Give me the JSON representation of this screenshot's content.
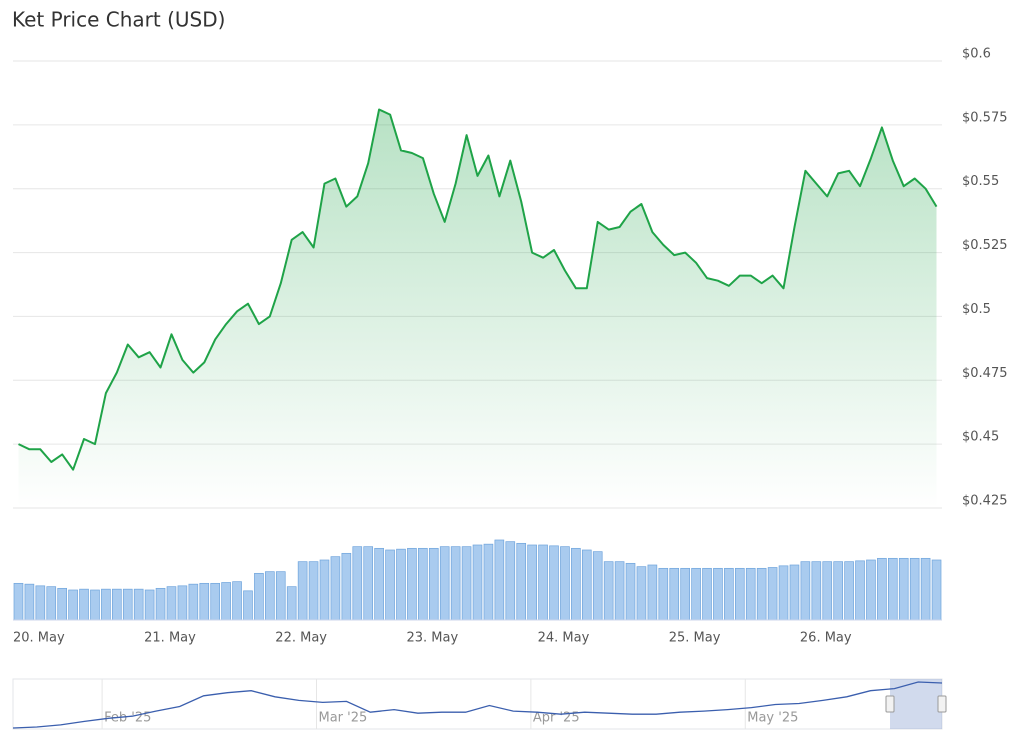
{
  "chart_data": {
    "type": "line",
    "title": "Ket Price Chart (USD)",
    "categories": [
      "20. May",
      null,
      null,
      null,
      null,
      null,
      null,
      null,
      null,
      null,
      null,
      null,
      "21. May",
      null,
      null,
      null,
      null,
      null,
      null,
      null,
      null,
      null,
      null,
      null,
      "22. May",
      null,
      null,
      null,
      null,
      null,
      null,
      null,
      null,
      null,
      null,
      null,
      "23. May",
      null,
      null,
      null,
      null,
      null,
      null,
      null,
      null,
      null,
      null,
      null,
      "24. May",
      null,
      null,
      null,
      null,
      null,
      null,
      null,
      null,
      null,
      null,
      null,
      "25. May",
      null,
      null,
      null,
      null,
      null,
      null,
      null,
      null,
      null,
      null,
      null,
      "26. May",
      null,
      null,
      null,
      null,
      null,
      null,
      null,
      null,
      null,
      null,
      null,
      null
    ],
    "values": [
      0.45,
      0.448,
      0.448,
      0.443,
      0.446,
      0.44,
      0.452,
      0.45,
      0.47,
      0.478,
      0.489,
      0.484,
      0.486,
      0.48,
      0.493,
      0.483,
      0.478,
      0.482,
      0.491,
      0.497,
      0.502,
      0.505,
      0.497,
      0.5,
      0.513,
      0.53,
      0.533,
      0.527,
      0.552,
      0.554,
      0.543,
      0.547,
      0.56,
      0.581,
      0.579,
      0.565,
      0.564,
      0.562,
      0.548,
      0.537,
      0.552,
      0.571,
      0.555,
      0.563,
      0.547,
      0.561,
      0.545,
      0.525,
      0.523,
      0.526,
      0.518,
      0.511,
      0.511,
      0.537,
      0.534,
      0.535,
      0.541,
      0.544,
      0.533,
      0.528,
      0.524,
      0.525,
      0.521,
      0.515,
      0.514,
      0.512,
      0.516,
      0.516,
      0.513,
      0.516,
      0.511,
      0.535,
      0.557,
      0.552,
      0.547,
      0.556,
      0.557,
      0.551,
      0.562,
      0.574,
      0.561,
      0.551,
      0.554,
      0.55,
      0.543
    ],
    "color": "#1fa348",
    "ylim": [
      0.425,
      0.6
    ],
    "yticks": [
      {
        "value": 0.425,
        "label": "$0.425"
      },
      {
        "value": 0.45,
        "label": "$0.45"
      },
      {
        "value": 0.475,
        "label": "$0.475"
      },
      {
        "value": 0.5,
        "label": "$0.5"
      },
      {
        "value": 0.525,
        "label": "$0.525"
      },
      {
        "value": 0.55,
        "label": "$0.55"
      },
      {
        "value": 0.575,
        "label": "$0.575"
      },
      {
        "value": 0.6,
        "label": "$0.6"
      }
    ],
    "grid": true,
    "volume": {
      "color": "#a9cbef",
      "values": [
        44,
        43,
        41,
        40,
        38,
        36,
        37,
        36,
        37,
        37,
        37,
        37,
        36,
        38,
        40,
        41,
        43,
        44,
        44,
        45,
        46,
        35,
        56,
        58,
        58,
        40,
        70,
        70,
        72,
        76,
        80,
        88,
        88,
        86,
        84,
        85,
        86,
        86,
        86,
        88,
        88,
        88,
        90,
        91,
        96,
        94,
        92,
        90,
        90,
        89,
        88,
        86,
        84,
        82,
        70,
        70,
        68,
        64,
        66,
        62,
        62,
        62,
        62,
        62,
        62,
        62,
        62,
        62,
        62,
        63,
        65,
        66,
        70,
        70,
        70,
        70,
        70,
        71,
        72,
        74,
        74,
        74,
        74,
        74,
        72
      ]
    },
    "navigator": {
      "color": "#3b5fae",
      "categories": [
        null,
        null,
        null,
        null,
        null,
        "Feb '25",
        null,
        null,
        null,
        null,
        null,
        null,
        null,
        null,
        "Mar '25",
        null,
        null,
        null,
        null,
        null,
        null,
        null,
        null,
        "Apr '25",
        null,
        null,
        null,
        null,
        null,
        null,
        null,
        null,
        "May '25",
        null,
        null,
        null,
        null,
        null,
        null,
        null
      ],
      "values": [
        2,
        4,
        8,
        15,
        21,
        25,
        35,
        44,
        65,
        71,
        75,
        63,
        56,
        52,
        54,
        33,
        38,
        31,
        33,
        33,
        46,
        35,
        33,
        29,
        33,
        31,
        29,
        29,
        33,
        35,
        38,
        42,
        48,
        50,
        56,
        63,
        75,
        79,
        92,
        90
      ]
    }
  }
}
